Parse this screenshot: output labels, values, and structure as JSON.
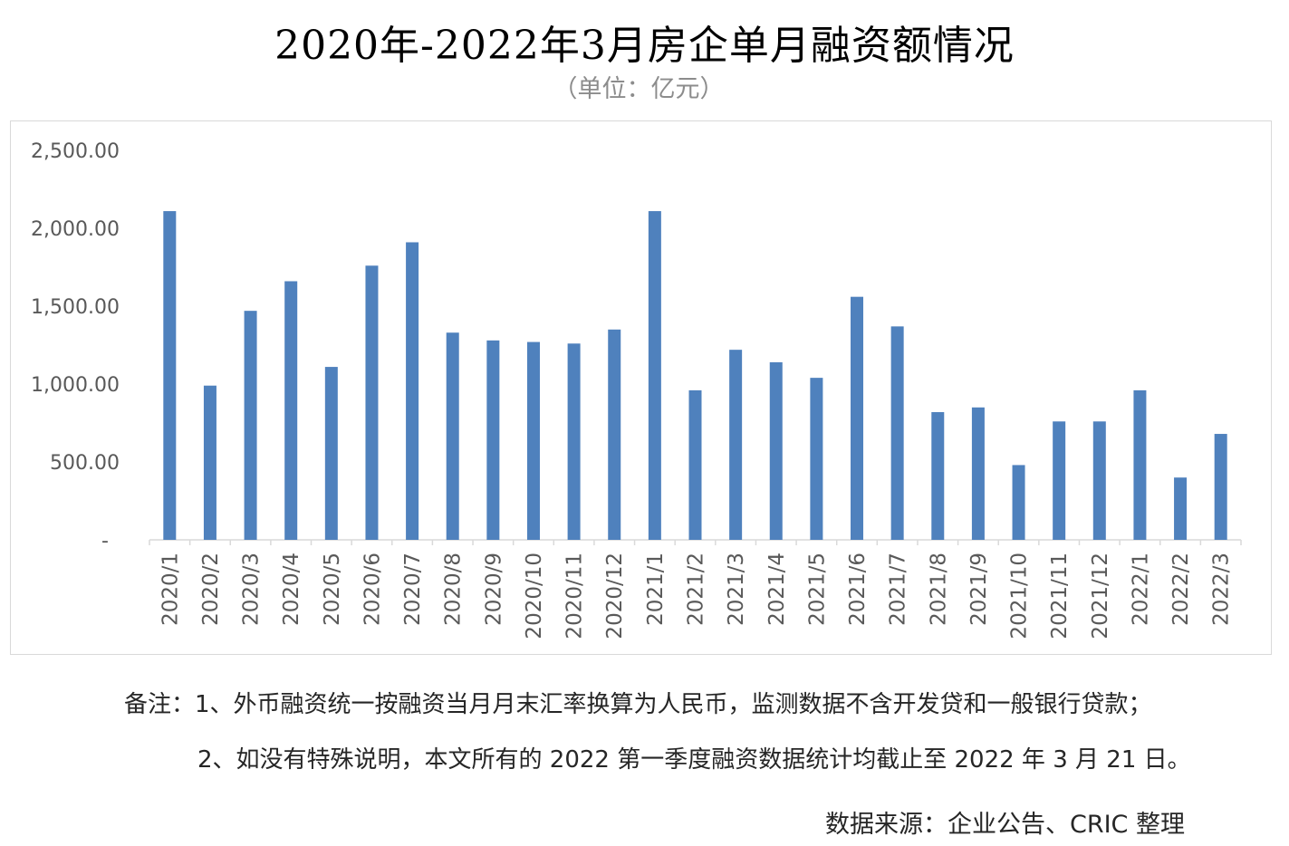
{
  "title": "2020年-2022年3月房企单月融资额情况",
  "unit_label": "（单位：亿元）",
  "notes": {
    "note1": "备注：1、外币融资统一按融资当月月末汇率换算为人民币，监测数据不含开发贷和一般银行贷款；",
    "note2": "2、如没有特殊说明，本文所有的 2022 第一季度融资数据统计均截止至 2022 年 3 月 21 日。"
  },
  "source": "数据来源：企业公告、CRIC 整理",
  "chart_data": {
    "type": "bar",
    "categories": [
      "2020/1",
      "2020/2",
      "2020/3",
      "2020/4",
      "2020/5",
      "2020/6",
      "2020/7",
      "2020/8",
      "2020/9",
      "2020/10",
      "2020/11",
      "2020/12",
      "2021/1",
      "2021/2",
      "2021/3",
      "2021/4",
      "2021/5",
      "2021/6",
      "2021/7",
      "2021/8",
      "2021/9",
      "2021/10",
      "2021/11",
      "2021/12",
      "2022/1",
      "2022/2",
      "2022/3"
    ],
    "values": [
      2110,
      990,
      1470,
      1660,
      1110,
      1760,
      1910,
      1330,
      1280,
      1270,
      1260,
      1350,
      2110,
      960,
      1220,
      1140,
      1040,
      1560,
      1370,
      820,
      850,
      480,
      760,
      760,
      960,
      400,
      680
    ],
    "y_ticks": [
      "-",
      "500.00",
      "1,000.00",
      "1,500.00",
      "2,000.00",
      "2,500.00"
    ],
    "ylim": [
      0,
      2500
    ],
    "bar_color": "#4f81bd",
    "axis_color": "#d9d9d9",
    "tick_label_color": "#595959",
    "grid": false,
    "legend": "none"
  }
}
